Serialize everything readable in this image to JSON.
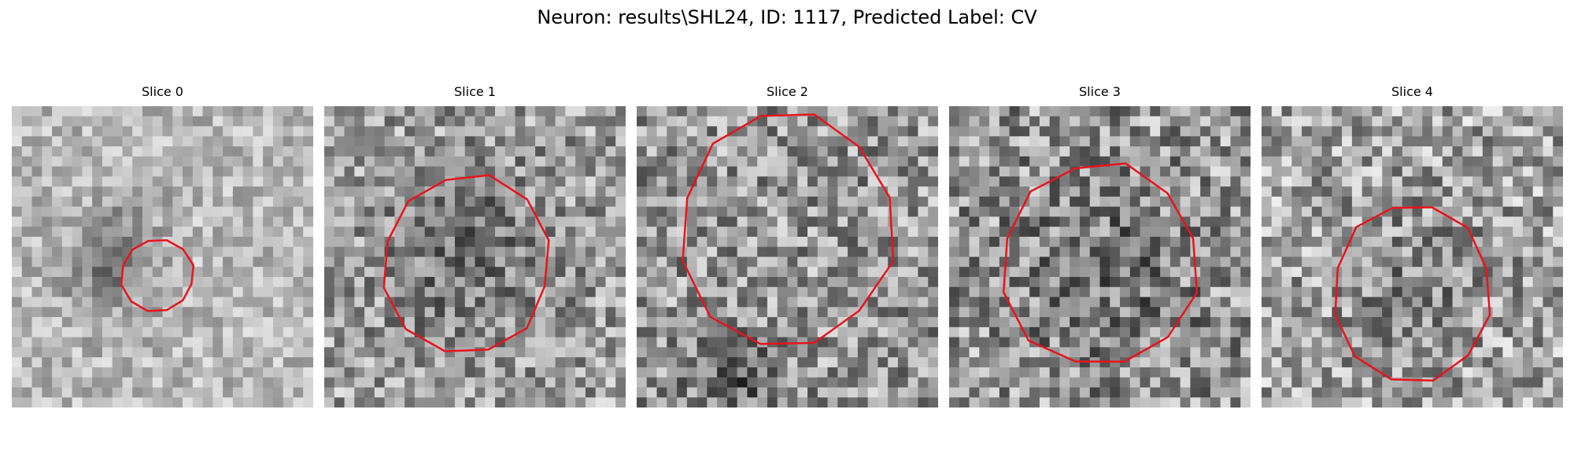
{
  "figure": {
    "title": "Neuron: results\\SHL24, ID: 1117, Predicted Label: CV"
  },
  "panels": [
    {
      "title": "Slice 0"
    },
    {
      "title": "Slice 1"
    },
    {
      "title": "Slice 2"
    },
    {
      "title": "Slice 3"
    },
    {
      "title": "Slice 4"
    }
  ],
  "colors": {
    "contour": "#e8141c",
    "background": "#ffffff"
  }
}
